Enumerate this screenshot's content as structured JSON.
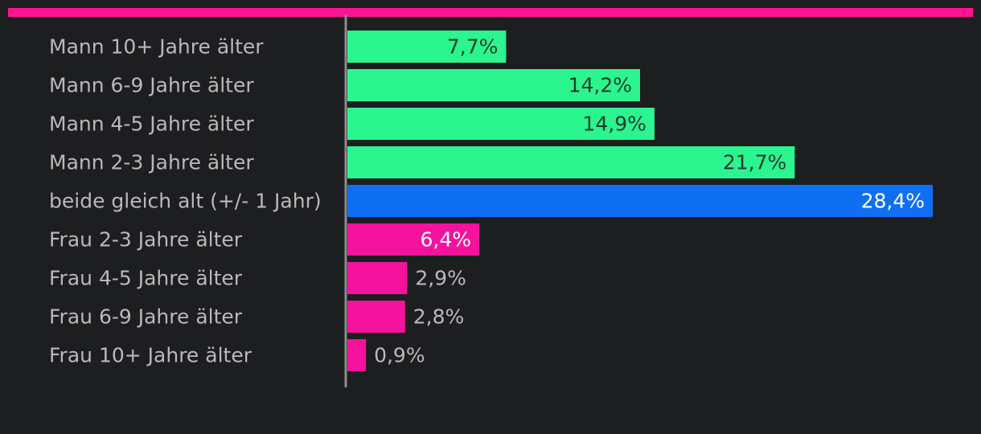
{
  "accent_color": "#ff1493",
  "chart_data": {
    "type": "bar",
    "orientation": "horizontal",
    "title": "",
    "xlabel": "",
    "ylabel": "",
    "categories": [
      "Mann 10+ Jahre älter",
      "Mann 6-9 Jahre älter",
      "Mann 4-5 Jahre älter",
      "Mann 2-3 Jahre älter",
      "beide gleich alt (+/- 1 Jahr)",
      "Frau 2-3 Jahre älter",
      "Frau 4-5 Jahre älter",
      "Frau 6-9 Jahre älter",
      "Frau 10+ Jahre älter"
    ],
    "values": [
      7.7,
      14.2,
      14.9,
      21.7,
      28.4,
      6.4,
      2.9,
      2.8,
      0.9
    ],
    "value_labels": [
      "7,7%",
      "14,2%",
      "14,9%",
      "21,7%",
      "28,4%",
      "6,4%",
      "2,9%",
      "2,8%",
      "0,9%"
    ],
    "colors": [
      "#2af58f",
      "#2af58f",
      "#2af58f",
      "#2af58f",
      "#0f6ff2",
      "#f5129c",
      "#f5129c",
      "#f5129c",
      "#f5129c"
    ],
    "xlim": [
      0,
      28.4
    ],
    "grid": false,
    "legend": "none"
  }
}
